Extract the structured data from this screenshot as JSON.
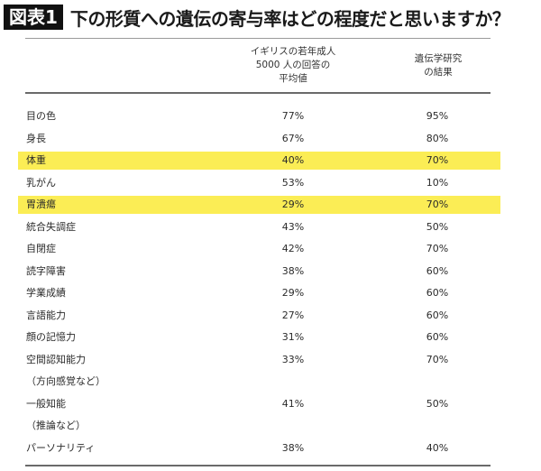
{
  "figure": {
    "badge": "図表1",
    "title": "下の形質への遺伝の寄与率はどの程度だと思いますか？"
  },
  "table": {
    "columns": [
      {
        "label": ""
      },
      {
        "label_lines": [
          "イギリスの若年成人",
          "5000 人の回答の",
          "平均値"
        ]
      },
      {
        "label_lines": [
          "遺伝学研究",
          "の結果"
        ]
      }
    ],
    "highlight_color": "#fbed55",
    "rows": [
      {
        "label": "目の色",
        "survey": "77%",
        "research": "95%",
        "highlight": false
      },
      {
        "label": "身長",
        "survey": "67%",
        "research": "80%",
        "highlight": false
      },
      {
        "label": "体重",
        "survey": "40%",
        "research": "70%",
        "highlight": true
      },
      {
        "label": "乳がん",
        "survey": "53%",
        "research": "10%",
        "highlight": false
      },
      {
        "label": "胃潰瘍",
        "survey": "29%",
        "research": "70%",
        "highlight": true
      },
      {
        "label": "統合失調症",
        "survey": "43%",
        "research": "50%",
        "highlight": false
      },
      {
        "label": "自閉症",
        "survey": "42%",
        "research": "70%",
        "highlight": false
      },
      {
        "label": "読字障害",
        "survey": "38%",
        "research": "60%",
        "highlight": false
      },
      {
        "label": "学業成績",
        "survey": "29%",
        "research": "60%",
        "highlight": false
      },
      {
        "label": "言語能力",
        "survey": "27%",
        "research": "60%",
        "highlight": false
      },
      {
        "label": "顔の記憶力",
        "survey": "31%",
        "research": "60%",
        "highlight": false
      },
      {
        "label": "空間認知能力",
        "survey": "33%",
        "research": "70%",
        "highlight": false
      },
      {
        "label": "（方向感覚など）",
        "survey": "",
        "research": "",
        "highlight": false
      },
      {
        "label": "一般知能",
        "survey": "41%",
        "research": "50%",
        "highlight": false
      },
      {
        "label": "（推論など）",
        "survey": "",
        "research": "",
        "highlight": false
      },
      {
        "label": "パーソナリティ",
        "survey": "38%",
        "research": "40%",
        "highlight": false
      }
    ]
  }
}
